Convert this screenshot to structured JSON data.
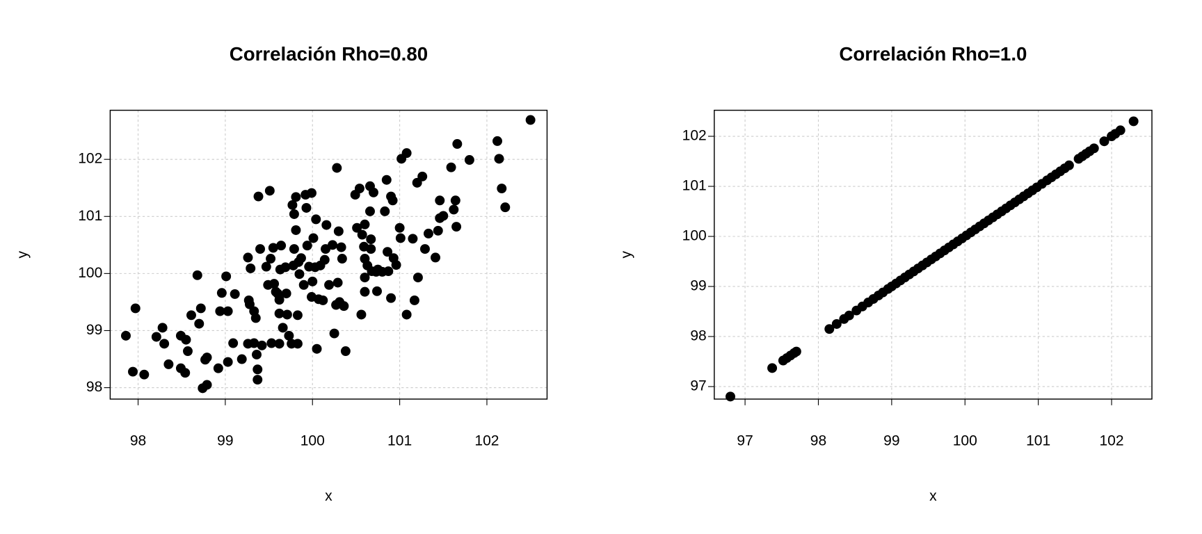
{
  "chart_data": [
    {
      "type": "scatter",
      "title": "Correlación Rho=0.80",
      "x_label": "x",
      "y_label": "y",
      "color": "#000000",
      "grid": true,
      "xlim": [
        97.68,
        102.69
      ],
      "ylim": [
        97.8,
        102.86
      ],
      "xticks": [
        98,
        99,
        100,
        101,
        102
      ],
      "yticks": [
        98,
        99,
        100,
        101,
        102
      ],
      "x": [
        97.86,
        97.97,
        97.94,
        98.07,
        98.21,
        98.28,
        98.3,
        98.35,
        98.49,
        98.49,
        98.55,
        98.57,
        98.54,
        98.61,
        98.68,
        98.7,
        98.72,
        98.74,
        98.79,
        98.77,
        98.79,
        98.92,
        98.94,
        98.96,
        99.01,
        99.03,
        99.03,
        99.09,
        99.11,
        99.19,
        99.26,
        99.27,
        99.28,
        99.29,
        99.26,
        99.33,
        99.35,
        99.33,
        99.38,
        99.37,
        99.37,
        99.36,
        99.4,
        99.42,
        99.47,
        99.49,
        99.51,
        99.52,
        99.53,
        99.56,
        99.58,
        99.62,
        99.55,
        99.6,
        99.62,
        99.62,
        99.64,
        99.63,
        99.66,
        99.69,
        99.7,
        99.71,
        99.73,
        99.76,
        99.77,
        99.78,
        99.79,
        99.81,
        99.79,
        99.81,
        99.83,
        99.83,
        99.84,
        99.85,
        99.87,
        99.9,
        99.92,
        99.93,
        99.94,
        99.96,
        99.99,
        99.99,
        100.0,
        100.01,
        100.03,
        100.05,
        100.04,
        100.07,
        100.09,
        100.12,
        100.14,
        100.15,
        100.16,
        100.19,
        100.23,
        100.25,
        100.27,
        100.28,
        100.29,
        100.3,
        100.31,
        100.33,
        100.34,
        100.36,
        100.38,
        100.49,
        100.51,
        100.54,
        100.56,
        100.57,
        100.59,
        100.6,
        100.6,
        100.6,
        100.6,
        100.63,
        100.66,
        100.66,
        100.67,
        100.67,
        100.68,
        100.7,
        100.73,
        100.74,
        100.75,
        100.8,
        100.83,
        100.85,
        100.86,
        100.87,
        100.9,
        100.9,
        100.92,
        100.93,
        100.96,
        101.0,
        101.01,
        101.02,
        101.08,
        101.08,
        101.15,
        101.17,
        101.2,
        101.21,
        101.26,
        101.29,
        101.33,
        101.41,
        101.44,
        101.46,
        101.46,
        101.5,
        101.59,
        101.62,
        101.64,
        101.65,
        101.66,
        101.8,
        102.12,
        102.14,
        102.17,
        102.21,
        102.5
      ],
      "values": [
        98.91,
        99.39,
        98.28,
        98.23,
        98.89,
        99.05,
        98.77,
        98.41,
        98.91,
        98.34,
        98.84,
        98.64,
        98.26,
        99.27,
        99.97,
        99.12,
        99.39,
        97.99,
        98.05,
        98.49,
        98.53,
        98.34,
        99.34,
        99.66,
        99.95,
        99.34,
        98.45,
        98.78,
        99.64,
        98.5,
        100.28,
        99.53,
        99.46,
        100.09,
        98.77,
        98.78,
        99.22,
        99.34,
        101.35,
        98.14,
        98.32,
        98.58,
        100.43,
        98.74,
        100.12,
        99.8,
        101.45,
        100.26,
        98.78,
        99.82,
        99.68,
        98.77,
        100.45,
        99.65,
        99.54,
        99.3,
        100.49,
        100.07,
        99.05,
        100.11,
        99.65,
        99.28,
        98.91,
        98.77,
        101.2,
        100.14,
        101.04,
        100.76,
        100.43,
        101.34,
        98.77,
        99.27,
        100.2,
        99.99,
        100.27,
        99.8,
        101.38,
        101.15,
        100.49,
        100.12,
        101.41,
        99.59,
        99.86,
        100.62,
        100.11,
        98.68,
        100.95,
        99.55,
        100.14,
        99.53,
        100.24,
        100.43,
        100.85,
        99.8,
        100.5,
        98.95,
        99.45,
        101.85,
        99.84,
        100.74,
        99.5,
        100.46,
        100.26,
        99.43,
        98.64,
        101.38,
        100.8,
        101.49,
        99.28,
        100.68,
        100.47,
        100.26,
        99.93,
        99.68,
        100.86,
        100.14,
        101.53,
        101.09,
        100.6,
        100.43,
        100.04,
        101.42,
        100.03,
        99.69,
        100.07,
        100.03,
        101.09,
        101.64,
        100.38,
        100.04,
        101.35,
        99.57,
        101.28,
        100.27,
        100.15,
        100.8,
        100.62,
        102.01,
        102.11,
        99.28,
        100.61,
        99.53,
        101.59,
        99.93,
        101.7,
        100.43,
        100.7,
        100.28,
        100.75,
        101.28,
        100.97,
        101.01,
        101.86,
        101.12,
        101.28,
        100.82,
        102.27,
        101.99,
        102.32,
        102.01,
        101.49,
        101.16,
        102.69
      ]
    },
    {
      "type": "scatter",
      "title": "Correlación Rho=1.0",
      "x_label": "x",
      "y_label": "y",
      "color": "#000000",
      "grid": true,
      "xlim": [
        96.58,
        102.55
      ],
      "ylim": [
        96.75,
        102.52
      ],
      "xticks": [
        97,
        98,
        99,
        100,
        101,
        102
      ],
      "yticks": [
        97,
        98,
        99,
        100,
        101,
        102
      ],
      "x": [
        96.8,
        97.37,
        97.52,
        97.57,
        97.62,
        97.67,
        97.7,
        98.15,
        98.25,
        98.35,
        98.42,
        98.52,
        98.6,
        98.68,
        98.75,
        98.82,
        98.88,
        98.95,
        99.0,
        99.06,
        99.12,
        99.18,
        99.24,
        99.3,
        99.36,
        99.42,
        99.48,
        99.54,
        99.6,
        99.66,
        99.72,
        99.78,
        99.84,
        99.9,
        99.96,
        100.02,
        100.08,
        100.14,
        100.2,
        100.26,
        100.32,
        100.38,
        100.44,
        100.5,
        100.56,
        100.62,
        100.68,
        100.74,
        100.8,
        100.86,
        100.92,
        100.98,
        101.05,
        101.12,
        101.18,
        101.24,
        101.3,
        101.36,
        101.42,
        101.55,
        101.6,
        101.65,
        101.7,
        101.76,
        101.9,
        102.0,
        102.05,
        102.12,
        102.3
      ],
      "values": [
        96.8,
        97.37,
        97.52,
        97.57,
        97.62,
        97.67,
        97.7,
        98.15,
        98.25,
        98.35,
        98.42,
        98.52,
        98.6,
        98.68,
        98.75,
        98.82,
        98.88,
        98.95,
        99.0,
        99.06,
        99.12,
        99.18,
        99.24,
        99.3,
        99.36,
        99.42,
        99.48,
        99.54,
        99.6,
        99.66,
        99.72,
        99.78,
        99.84,
        99.9,
        99.96,
        100.02,
        100.08,
        100.14,
        100.2,
        100.26,
        100.32,
        100.38,
        100.44,
        100.5,
        100.56,
        100.62,
        100.68,
        100.74,
        100.8,
        100.86,
        100.92,
        100.98,
        101.05,
        101.12,
        101.18,
        101.24,
        101.3,
        101.36,
        101.42,
        101.55,
        101.6,
        101.65,
        101.7,
        101.76,
        101.9,
        102.0,
        102.05,
        102.12,
        102.3
      ]
    }
  ]
}
